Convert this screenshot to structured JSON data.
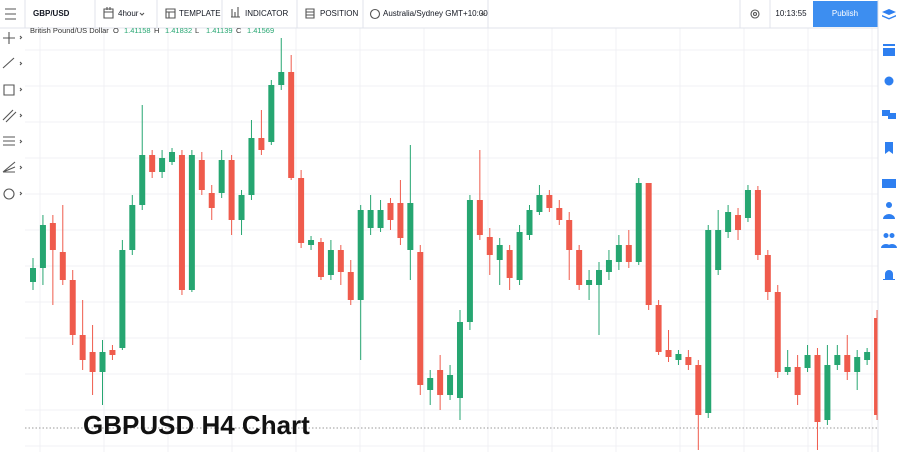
{
  "toolbar": {
    "symbol": "GBP/USD",
    "interval": "4hour",
    "template": "TEMPLATE",
    "indicator": "INDICATOR",
    "position": "POSITION",
    "timezone": "Australia/Sydney GMT+10:00",
    "clock": "10:13:55",
    "publish": "Publish"
  },
  "legend": {
    "name": "British Pound/US Dollar",
    "items": [
      {
        "key": "O",
        "value": 1.41158
      },
      {
        "key": "H",
        "value": 1.41832
      },
      {
        "key": "L",
        "value": 1.41139
      },
      {
        "key": "C",
        "value": 1.41569
      }
    ]
  },
  "caption": "GBPUSD H4 Chart",
  "chart_data": {
    "type": "candlestick",
    "up_color": "#26a671",
    "down_color": "#ef5b4c",
    "ylim": [
      1.4032,
      1.4454
    ],
    "open": [
      1.4202,
      1.4216,
      1.4261,
      1.4232,
      1.4204,
      1.4149,
      1.4132,
      1.4112,
      1.4134,
      1.4136,
      1.4234,
      1.4279,
      1.4329,
      1.4312,
      1.4322,
      1.4329,
      1.4194,
      1.4324,
      1.4291,
      1.4291,
      1.4324,
      1.4264,
      1.4289,
      1.4346,
      1.4342,
      1.4399,
      1.4412,
      1.4306,
      1.4239,
      1.4242,
      1.4209,
      1.4234,
      1.4212,
      1.4184,
      1.4256,
      1.4256,
      1.4281,
      1.4281,
      1.4234,
      1.4232,
      1.4094,
      1.4114,
      1.4089,
      1.4086,
      1.4162,
      1.4284,
      1.4247,
      1.4224,
      1.4234,
      1.4204,
      1.4249,
      1.4272,
      1.4289,
      1.4276,
      1.4264,
      1.4234,
      1.4199,
      1.4199,
      1.4212,
      1.4222,
      1.4239,
      1.4222,
      1.4301,
      1.4179,
      1.4134,
      1.4124,
      1.4127,
      1.4119,
      1.4071,
      1.4214,
      1.4252,
      1.4269,
      1.4266,
      1.4294,
      1.4229,
      1.4192,
      1.4112,
      1.4117,
      1.4116,
      1.4129,
      1.4064,
      1.4119,
      1.4129,
      1.4112,
      1.4124,
      1.4166
    ],
    "high": [
      1.4226,
      1.4269,
      1.4269,
      1.4279,
      1.4214,
      1.4184,
      1.4159,
      1.4144,
      1.4139,
      1.4244,
      1.4289,
      1.4379,
      1.4334,
      1.4334,
      1.4336,
      1.4334,
      1.4334,
      1.4332,
      1.4299,
      1.4334,
      1.4329,
      1.4294,
      1.4364,
      1.4374,
      1.4404,
      1.4446,
      1.4429,
      1.4314,
      1.4248,
      1.4246,
      1.4244,
      1.4239,
      1.4224,
      1.4279,
      1.4289,
      1.4284,
      1.4286,
      1.4304,
      1.4339,
      1.4239,
      1.4114,
      1.4129,
      1.4119,
      1.4174,
      1.4289,
      1.4334,
      1.4256,
      1.4246,
      1.4239,
      1.4259,
      1.4279,
      1.4299,
      1.4294,
      1.4284,
      1.4272,
      1.4239,
      1.4214,
      1.4222,
      1.4234,
      1.4249,
      1.4254,
      1.4306,
      1.4301,
      1.4184,
      1.4154,
      1.4134,
      1.4134,
      1.4124,
      1.4259,
      1.4274,
      1.4279,
      1.4276,
      1.4299,
      1.4298,
      1.4234,
      1.4199,
      1.4134,
      1.4129,
      1.4139,
      1.4136,
      1.4139,
      1.4139,
      1.4149,
      1.4134,
      1.4136,
      1.4174
    ],
    "low": [
      1.4194,
      1.4199,
      1.4179,
      1.4199,
      1.4139,
      1.4114,
      1.4089,
      1.4079,
      1.4124,
      1.4134,
      1.4229,
      1.4274,
      1.4306,
      1.4306,
      1.4319,
      1.4189,
      1.4192,
      1.4289,
      1.4264,
      1.4286,
      1.4249,
      1.4249,
      1.4284,
      1.4329,
      1.4339,
      1.4394,
      1.4304,
      1.4236,
      1.4234,
      1.4204,
      1.4204,
      1.4199,
      1.4179,
      1.4124,
      1.4249,
      1.4252,
      1.4254,
      1.4239,
      1.4204,
      1.4089,
      1.4079,
      1.4074,
      1.4084,
      1.4064,
      1.4154,
      1.4244,
      1.4209,
      1.4199,
      1.4194,
      1.4199,
      1.4244,
      1.4269,
      1.4272,
      1.4259,
      1.4204,
      1.4194,
      1.4184,
      1.4149,
      1.4204,
      1.4214,
      1.4216,
      1.4219,
      1.4174,
      1.4129,
      1.4122,
      1.4119,
      1.4114,
      1.4034,
      1.4066,
      1.4209,
      1.4246,
      1.4244,
      1.4262,
      1.4224,
      1.4184,
      1.4106,
      1.4109,
      1.4079,
      1.4112,
      1.4034,
      1.4059,
      1.4114,
      1.4104,
      1.4094,
      1.4119,
      1.4064
    ],
    "close": [
      1.4216,
      1.4259,
      1.4234,
      1.4204,
      1.4149,
      1.4124,
      1.4112,
      1.4132,
      1.4129,
      1.4234,
      1.4279,
      1.4329,
      1.4312,
      1.4326,
      1.4332,
      1.4194,
      1.4329,
      1.4294,
      1.4276,
      1.4324,
      1.4264,
      1.4289,
      1.4346,
      1.4334,
      1.4399,
      1.4412,
      1.4306,
      1.4241,
      1.4244,
      1.4207,
      1.4234,
      1.4212,
      1.4184,
      1.4274,
      1.4274,
      1.4274,
      1.4264,
      1.4246,
      1.4281,
      1.4099,
      1.4106,
      1.4089,
      1.4109,
      1.4162,
      1.4284,
      1.4249,
      1.4229,
      1.4239,
      1.4206,
      1.4252,
      1.4274,
      1.4289,
      1.4276,
      1.4264,
      1.4234,
      1.4199,
      1.4204,
      1.4214,
      1.4224,
      1.4239,
      1.4222,
      1.4301,
      1.4179,
      1.4132,
      1.4127,
      1.413,
      1.4119,
      1.4069,
      1.4254,
      1.4254,
      1.4272,
      1.4254,
      1.4294,
      1.4229,
      1.4192,
      1.4112,
      1.4117,
      1.4089,
      1.4129,
      1.4062,
      1.4119,
      1.4129,
      1.4112,
      1.4127,
      1.4132,
      1.4069
    ]
  }
}
